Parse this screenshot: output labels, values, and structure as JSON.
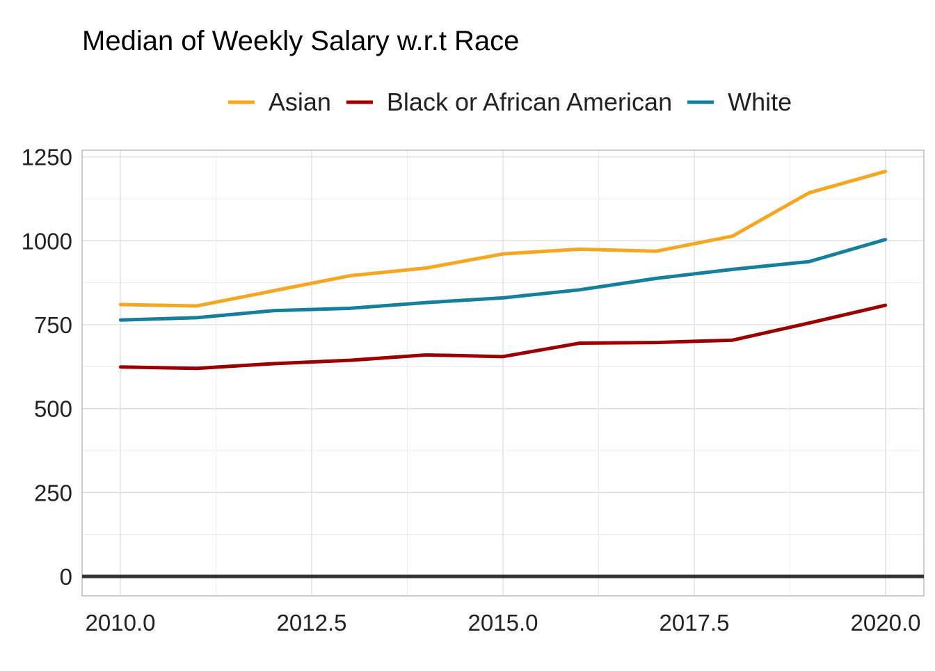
{
  "chart_data": {
    "type": "line",
    "title": "Median of Weekly Salary w.r.t Race",
    "xlabel": "",
    "ylabel": "",
    "x": [
      2010,
      2011,
      2012,
      2013,
      2014,
      2015,
      2016,
      2017,
      2018,
      2019,
      2020
    ],
    "xlim": [
      2009.5,
      2020.5
    ],
    "ylim": [
      -58,
      1270
    ],
    "x_ticks": [
      2010,
      2012.5,
      2015,
      2017.5,
      2020
    ],
    "x_tick_labels": [
      "2010.0",
      "2012.5",
      "2015.0",
      "2017.5",
      "2020.0"
    ],
    "y_ticks": [
      0,
      250,
      500,
      750,
      1000,
      1250
    ],
    "y_tick_labels": [
      "0",
      "250",
      "500",
      "750",
      "1000",
      "1250"
    ],
    "reference_line": 0,
    "grid": true,
    "legend_position": "top",
    "series": [
      {
        "name": "Asian",
        "color": "#F5A623",
        "values": [
          810,
          806,
          851,
          896,
          919,
          961,
          975,
          969,
          1014,
          1143,
          1207
        ]
      },
      {
        "name": "Black or African American",
        "color": "#9B0000",
        "values": [
          624,
          620,
          634,
          644,
          660,
          655,
          695,
          697,
          704,
          755,
          808
        ]
      },
      {
        "name": "White",
        "color": "#157F9C",
        "values": [
          764,
          771,
          792,
          799,
          816,
          830,
          854,
          888,
          915,
          938,
          1004
        ]
      }
    ]
  }
}
